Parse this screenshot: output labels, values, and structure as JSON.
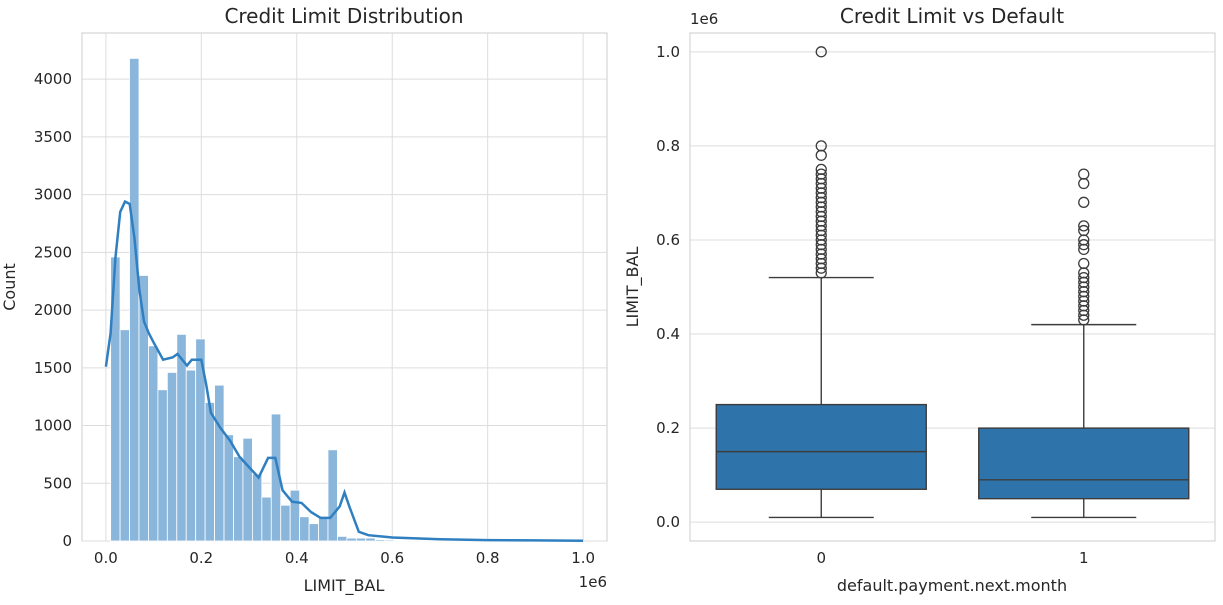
{
  "chart_data": [
    {
      "type": "bar",
      "title": "Credit Limit Distribution",
      "xlabel": "LIMIT_BAL",
      "ylabel": "Count",
      "x_offset_label": "1e6",
      "xlim": [
        -0.05,
        1.05
      ],
      "ylim": [
        0,
        4400
      ],
      "xticks": [
        0.0,
        0.2,
        0.4,
        0.6,
        0.8,
        1.0
      ],
      "xtick_labels": [
        "0.0",
        "0.2",
        "0.4",
        "0.6",
        "0.8",
        "1.0"
      ],
      "yticks": [
        0,
        500,
        1000,
        1500,
        2000,
        2500,
        3000,
        3500,
        4000
      ],
      "ytick_labels": [
        "0",
        "500",
        "1000",
        "1500",
        "2000",
        "2500",
        "3000",
        "3500",
        "4000"
      ],
      "grid": true,
      "bin_start": 0.01,
      "bin_width": 0.0198,
      "values": [
        2460,
        1830,
        4180,
        2300,
        1690,
        1310,
        1460,
        1790,
        1480,
        1750,
        1200,
        1350,
        920,
        730,
        890,
        580,
        380,
        1100,
        310,
        440,
        210,
        150,
        210,
        790,
        40,
        25,
        25,
        25,
        12,
        10,
        6,
        5,
        4,
        3,
        3,
        2,
        2,
        2,
        1,
        1,
        1,
        1,
        1,
        1,
        1,
        1,
        1,
        1,
        1,
        1
      ],
      "bar_color": "#8ab6dc",
      "kde": {
        "x": [
          0.0,
          0.01,
          0.02,
          0.03,
          0.04,
          0.05,
          0.06,
          0.07,
          0.08,
          0.09,
          0.1,
          0.12,
          0.14,
          0.15,
          0.17,
          0.18,
          0.2,
          0.21,
          0.22,
          0.24,
          0.26,
          0.28,
          0.3,
          0.32,
          0.34,
          0.355,
          0.37,
          0.39,
          0.41,
          0.43,
          0.45,
          0.47,
          0.49,
          0.5,
          0.51,
          0.53,
          0.55,
          0.6,
          0.7,
          0.8,
          0.9,
          1.0
        ],
        "y": [
          1510,
          1800,
          2450,
          2850,
          2940,
          2920,
          2620,
          2180,
          1900,
          1800,
          1720,
          1570,
          1590,
          1620,
          1520,
          1570,
          1570,
          1360,
          1110,
          980,
          870,
          730,
          640,
          550,
          720,
          720,
          440,
          340,
          330,
          250,
          200,
          200,
          300,
          420,
          300,
          80,
          50,
          30,
          15,
          8,
          5,
          3
        ],
        "color": "#2f7fc1"
      }
    },
    {
      "type": "box",
      "title": "Credit Limit vs Default",
      "xlabel": "default.payment.next.month",
      "ylabel": "LIMIT_BAL",
      "y_offset_label": "1e6",
      "ylim": [
        -0.04,
        1.04
      ],
      "yticks": [
        0.0,
        0.2,
        0.4,
        0.6,
        0.8,
        1.0
      ],
      "ytick_labels": [
        "0.0",
        "0.2",
        "0.4",
        "0.6",
        "0.8",
        "1.0"
      ],
      "grid": true,
      "box_color": "#2e74aa",
      "categories": [
        "0",
        "1"
      ],
      "boxes": [
        {
          "category": "0",
          "whisker_low": 0.01,
          "q1": 0.07,
          "median": 0.15,
          "q3": 0.25,
          "whisker_high": 0.52,
          "outliers": [
            0.53,
            0.54,
            0.55,
            0.56,
            0.57,
            0.58,
            0.59,
            0.6,
            0.61,
            0.62,
            0.63,
            0.64,
            0.65,
            0.66,
            0.67,
            0.68,
            0.69,
            0.7,
            0.71,
            0.72,
            0.73,
            0.74,
            0.75,
            0.78,
            0.8,
            1.0
          ]
        },
        {
          "category": "1",
          "whisker_low": 0.01,
          "q1": 0.05,
          "median": 0.09,
          "q3": 0.2,
          "whisker_high": 0.42,
          "outliers": [
            0.43,
            0.44,
            0.45,
            0.46,
            0.47,
            0.48,
            0.49,
            0.5,
            0.51,
            0.52,
            0.53,
            0.55,
            0.58,
            0.59,
            0.6,
            0.62,
            0.63,
            0.68,
            0.72,
            0.74
          ]
        }
      ]
    }
  ]
}
